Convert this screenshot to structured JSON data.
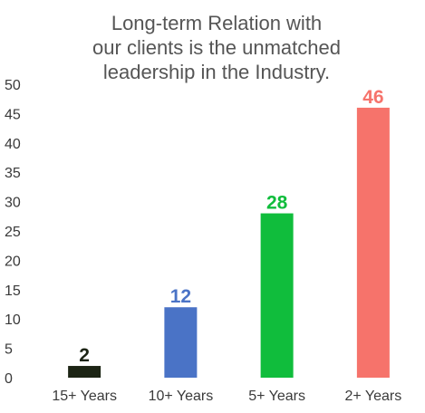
{
  "chart_data": {
    "type": "bar",
    "title_lines": [
      "Long-term Relation with",
      "our clients is the unmatched",
      "leadership in the Industry."
    ],
    "categories": [
      "15+ Years",
      "10+ Years",
      "5+ Years",
      "2+ Years"
    ],
    "values": [
      2,
      12,
      28,
      46
    ],
    "value_labels": [
      "2",
      "12",
      "28",
      "46"
    ],
    "colors": [
      "#1c2414",
      "#4a73c6",
      "#10bd3c",
      "#f6736b"
    ],
    "y_ticks": [
      "0",
      "5",
      "10",
      "15",
      "20",
      "25",
      "30",
      "35",
      "40",
      "45",
      "50"
    ],
    "ylim": [
      0,
      50
    ],
    "grid": false,
    "legend": "none",
    "xlabel": "",
    "ylabel": ""
  }
}
